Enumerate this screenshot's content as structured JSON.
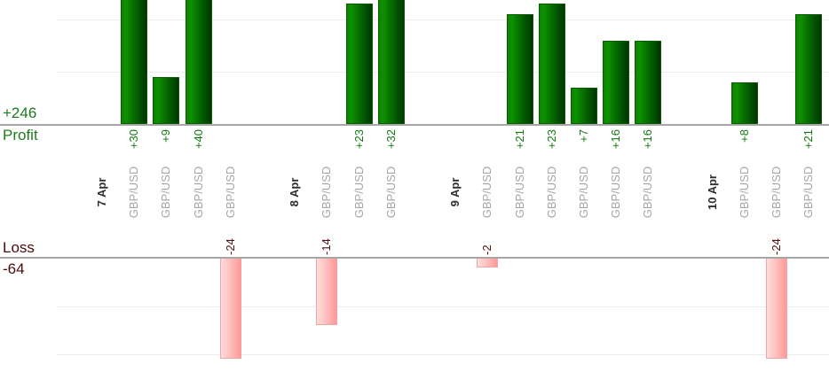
{
  "summary": {
    "profit_total": "+246",
    "profit_axis_label": "Profit",
    "loss_axis_label": "Loss",
    "loss_total": "-64"
  },
  "chart_data": {
    "type": "bar",
    "orientation": "vertical-columns",
    "description_visible_text_only": true,
    "profit_total_label": "+246",
    "loss_total_label": "-64",
    "axis_labels": {
      "profit": "Profit",
      "loss": "Loss"
    },
    "gridlines": {
      "profit_values": [
        10,
        20
      ],
      "loss_values": [
        -10,
        -20
      ]
    },
    "legend_position": "none",
    "colors": {
      "profit_bar_light": "#0e9000",
      "profit_bar_dark": "#003600",
      "loss_bar_light": "#ffdcdc",
      "loss_bar_dark": "#ff9898",
      "profit_text": "#1c7c1c",
      "loss_text": "#4a0b0b",
      "date_text": "#2e2e2e",
      "instrument_text": "#a6a6a6",
      "gridline": "#ececec",
      "axis_line": "#a6a6a6"
    },
    "columns": [
      {
        "kind": "date",
        "label": "7 Apr"
      },
      {
        "kind": "trade",
        "label": "GBP/USD",
        "value": 30,
        "value_label": "+30"
      },
      {
        "kind": "trade",
        "label": "GBP/USD",
        "value": 9,
        "value_label": "+9"
      },
      {
        "kind": "trade",
        "label": "GBP/USD",
        "value": 40,
        "value_label": "+40"
      },
      {
        "kind": "trade",
        "label": "GBP/USD",
        "value": -24,
        "value_label": "-24"
      },
      {
        "kind": "gap"
      },
      {
        "kind": "date",
        "label": "8 Apr"
      },
      {
        "kind": "trade",
        "label": "GBP/USD",
        "value": -14,
        "value_label": "-14"
      },
      {
        "kind": "trade",
        "label": "GBP/USD",
        "value": 23,
        "value_label": "+23"
      },
      {
        "kind": "trade",
        "label": "GBP/USD",
        "value": 32,
        "value_label": "+32"
      },
      {
        "kind": "gap"
      },
      {
        "kind": "date",
        "label": "9 Apr"
      },
      {
        "kind": "trade",
        "label": "GBP/USD",
        "value": -2,
        "value_label": "-2"
      },
      {
        "kind": "trade",
        "label": "GBP/USD",
        "value": 21,
        "value_label": "+21"
      },
      {
        "kind": "trade",
        "label": "GBP/USD",
        "value": 23,
        "value_label": "+23"
      },
      {
        "kind": "trade",
        "label": "GBP/USD",
        "value": 7,
        "value_label": "+7"
      },
      {
        "kind": "trade",
        "label": "GBP/USD",
        "value": 16,
        "value_label": "+16"
      },
      {
        "kind": "trade",
        "label": "GBP/USD",
        "value": 16,
        "value_label": "+16"
      },
      {
        "kind": "gap"
      },
      {
        "kind": "date",
        "label": "10 Apr"
      },
      {
        "kind": "trade",
        "label": "GBP/USD",
        "value": 8,
        "value_label": "+8"
      },
      {
        "kind": "trade",
        "label": "GBP/USD",
        "value": -24,
        "value_label": "-24"
      },
      {
        "kind": "trade",
        "label": "GBP/USD",
        "value": 21,
        "value_label": "+21"
      }
    ]
  }
}
